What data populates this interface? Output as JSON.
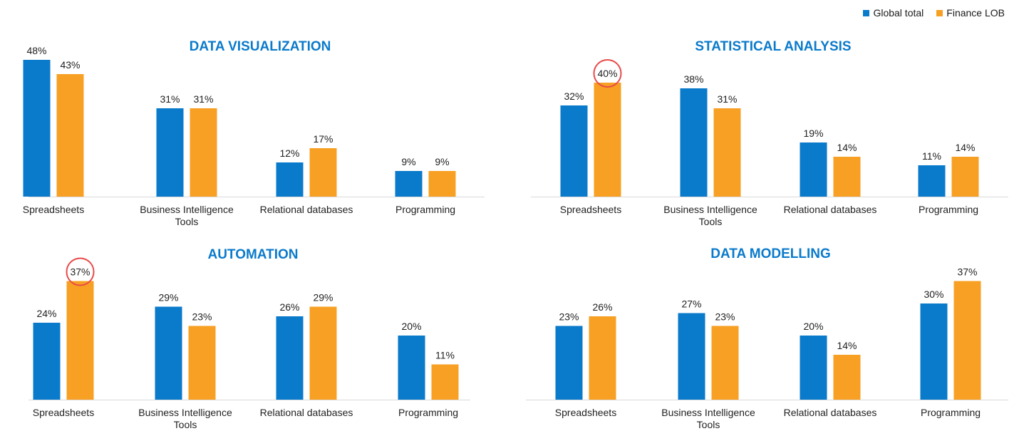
{
  "legend": {
    "global_label": "Global total",
    "finance_label": "Finance LOB"
  },
  "colors": {
    "global": "#0A7ACB",
    "finance": "#F7A023",
    "title": "#0A7ACB",
    "axis": "#D9D9D9",
    "highlight": "#E84A4A"
  },
  "chart_data": [
    {
      "type": "bar",
      "title": "DATA VISUALIZATION",
      "categories": [
        "Spreadsheets",
        "Business Intelligence\nTools",
        "Relational databases",
        "Programming"
      ],
      "series": [
        {
          "name": "Global total",
          "values": [
            48,
            31,
            12,
            9
          ],
          "labels": [
            "48%",
            "31%",
            "12%",
            "9%"
          ]
        },
        {
          "name": "Finance LOB",
          "values": [
            43,
            31,
            17,
            9
          ],
          "labels": [
            "43%",
            "31%",
            "17%",
            "9%"
          ]
        }
      ],
      "highlight": null
    },
    {
      "type": "bar",
      "title": "STATISTICAL ANALYSIS",
      "categories": [
        "Spreadsheets",
        "Business Intelligence\nTools",
        "Relational databases",
        "Programming"
      ],
      "series": [
        {
          "name": "Global total",
          "values": [
            32,
            38,
            19,
            11
          ],
          "labels": [
            "32%",
            "38%",
            "19%",
            "11%"
          ]
        },
        {
          "name": "Finance LOB",
          "values": [
            40,
            31,
            14,
            14
          ],
          "labels": [
            "40%",
            "31%",
            "14%",
            "14%"
          ]
        }
      ],
      "highlight": {
        "series": 1,
        "category": 0
      }
    },
    {
      "type": "bar",
      "title": "AUTOMATION",
      "categories": [
        "Spreadsheets",
        "Business Intelligence\nTools",
        "Relational databases",
        "Programming"
      ],
      "series": [
        {
          "name": "Global total",
          "values": [
            24,
            29,
            26,
            20
          ],
          "labels": [
            "24%",
            "29%",
            "26%",
            "20%"
          ]
        },
        {
          "name": "Finance LOB",
          "values": [
            37,
            23,
            29,
            11
          ],
          "labels": [
            "37%",
            "23%",
            "29%",
            "11%"
          ]
        }
      ],
      "highlight": {
        "series": 1,
        "category": 0
      }
    },
    {
      "type": "bar",
      "title": "DATA MODELLING",
      "categories": [
        "Spreadsheets",
        "Business Intelligence\nTools",
        "Relational databases",
        "Programming"
      ],
      "series": [
        {
          "name": "Global total",
          "values": [
            23,
            27,
            20,
            30
          ],
          "labels": [
            "23%",
            "27%",
            "20%",
            "30%"
          ]
        },
        {
          "name": "Finance LOB",
          "values": [
            26,
            23,
            14,
            37
          ],
          "labels": [
            "26%",
            "23%",
            "14%",
            "37%"
          ]
        }
      ],
      "highlight": null
    }
  ]
}
